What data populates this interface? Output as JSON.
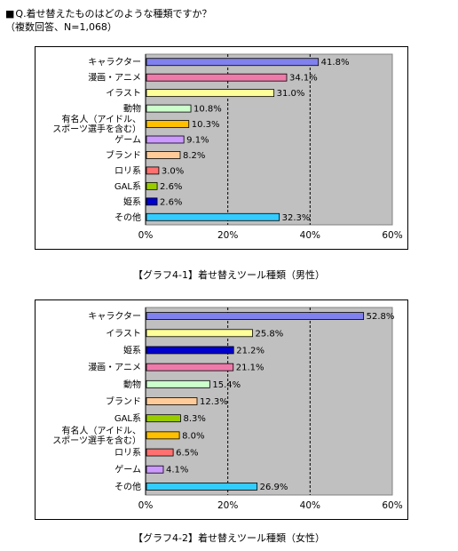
{
  "header": {
    "question": "Q.着せ替えたものはどのような種類ですか？",
    "note": "（複数回答、N=1,068）"
  },
  "chart_data": [
    {
      "type": "bar",
      "orientation": "horizontal",
      "caption": "【グラフ4-1】着せ替えツール種類（男性）",
      "categories": [
        "キャラクター",
        "漫画・アニメ",
        "イラスト",
        "動物",
        [
          "有名人（アイドル、",
          "スポーツ選手を含む）"
        ],
        "ゲーム",
        "ブランド",
        "ロリ系",
        "GAL系",
        "姫系",
        "その他"
      ],
      "values": [
        41.8,
        34.1,
        31.0,
        10.8,
        10.3,
        9.1,
        8.2,
        3.0,
        2.6,
        2.6,
        32.3
      ],
      "value_labels": [
        "41.8%",
        "34.1%",
        "31.0%",
        "10.8%",
        "10.3%",
        "9.1%",
        "8.2%",
        "3.0%",
        "2.6%",
        "2.6%",
        "32.3%"
      ],
      "colors": [
        "#8080ee",
        "#ee7aaa",
        "#ffff99",
        "#ccffcc",
        "#ffc000",
        "#cc99ff",
        "#ffcc99",
        "#ff7070",
        "#99cc00",
        "#0000cc",
        "#33ccff"
      ],
      "xlim": [
        0,
        60
      ],
      "xticks": [
        "0%",
        "20%",
        "40%",
        "60%"
      ],
      "grid": "dashed vertical at 20% and 40%",
      "plot_background": "#c0c0c0"
    },
    {
      "type": "bar",
      "orientation": "horizontal",
      "caption": "【グラフ4-2】着せ替えツール種類（女性）",
      "categories": [
        "キャラクター",
        "イラスト",
        "姫系",
        "漫画・アニメ",
        "動物",
        "ブランド",
        "GAL系",
        [
          "有名人（アイドル、",
          "スポーツ選手を含む）"
        ],
        "ロリ系",
        "ゲーム",
        "その他"
      ],
      "values": [
        52.8,
        25.8,
        21.2,
        21.1,
        15.4,
        12.3,
        8.3,
        8.0,
        6.5,
        4.1,
        26.9
      ],
      "value_labels": [
        "52.8%",
        "25.8%",
        "21.2%",
        "21.1%",
        "15.4%",
        "12.3%",
        "8.3%",
        "8.0%",
        "6.5%",
        "4.1%",
        "26.9%"
      ],
      "colors": [
        "#8080ee",
        "#ffff99",
        "#0000cc",
        "#ee7aaa",
        "#ccffcc",
        "#ffcc99",
        "#99cc00",
        "#ffc000",
        "#ff7070",
        "#cc99ff",
        "#33ccff"
      ],
      "xlim": [
        0,
        60
      ],
      "xticks": [
        "0%",
        "20%",
        "40%",
        "60%"
      ],
      "grid": "dashed vertical at 20% and 40%",
      "plot_background": "#c0c0c0"
    }
  ]
}
